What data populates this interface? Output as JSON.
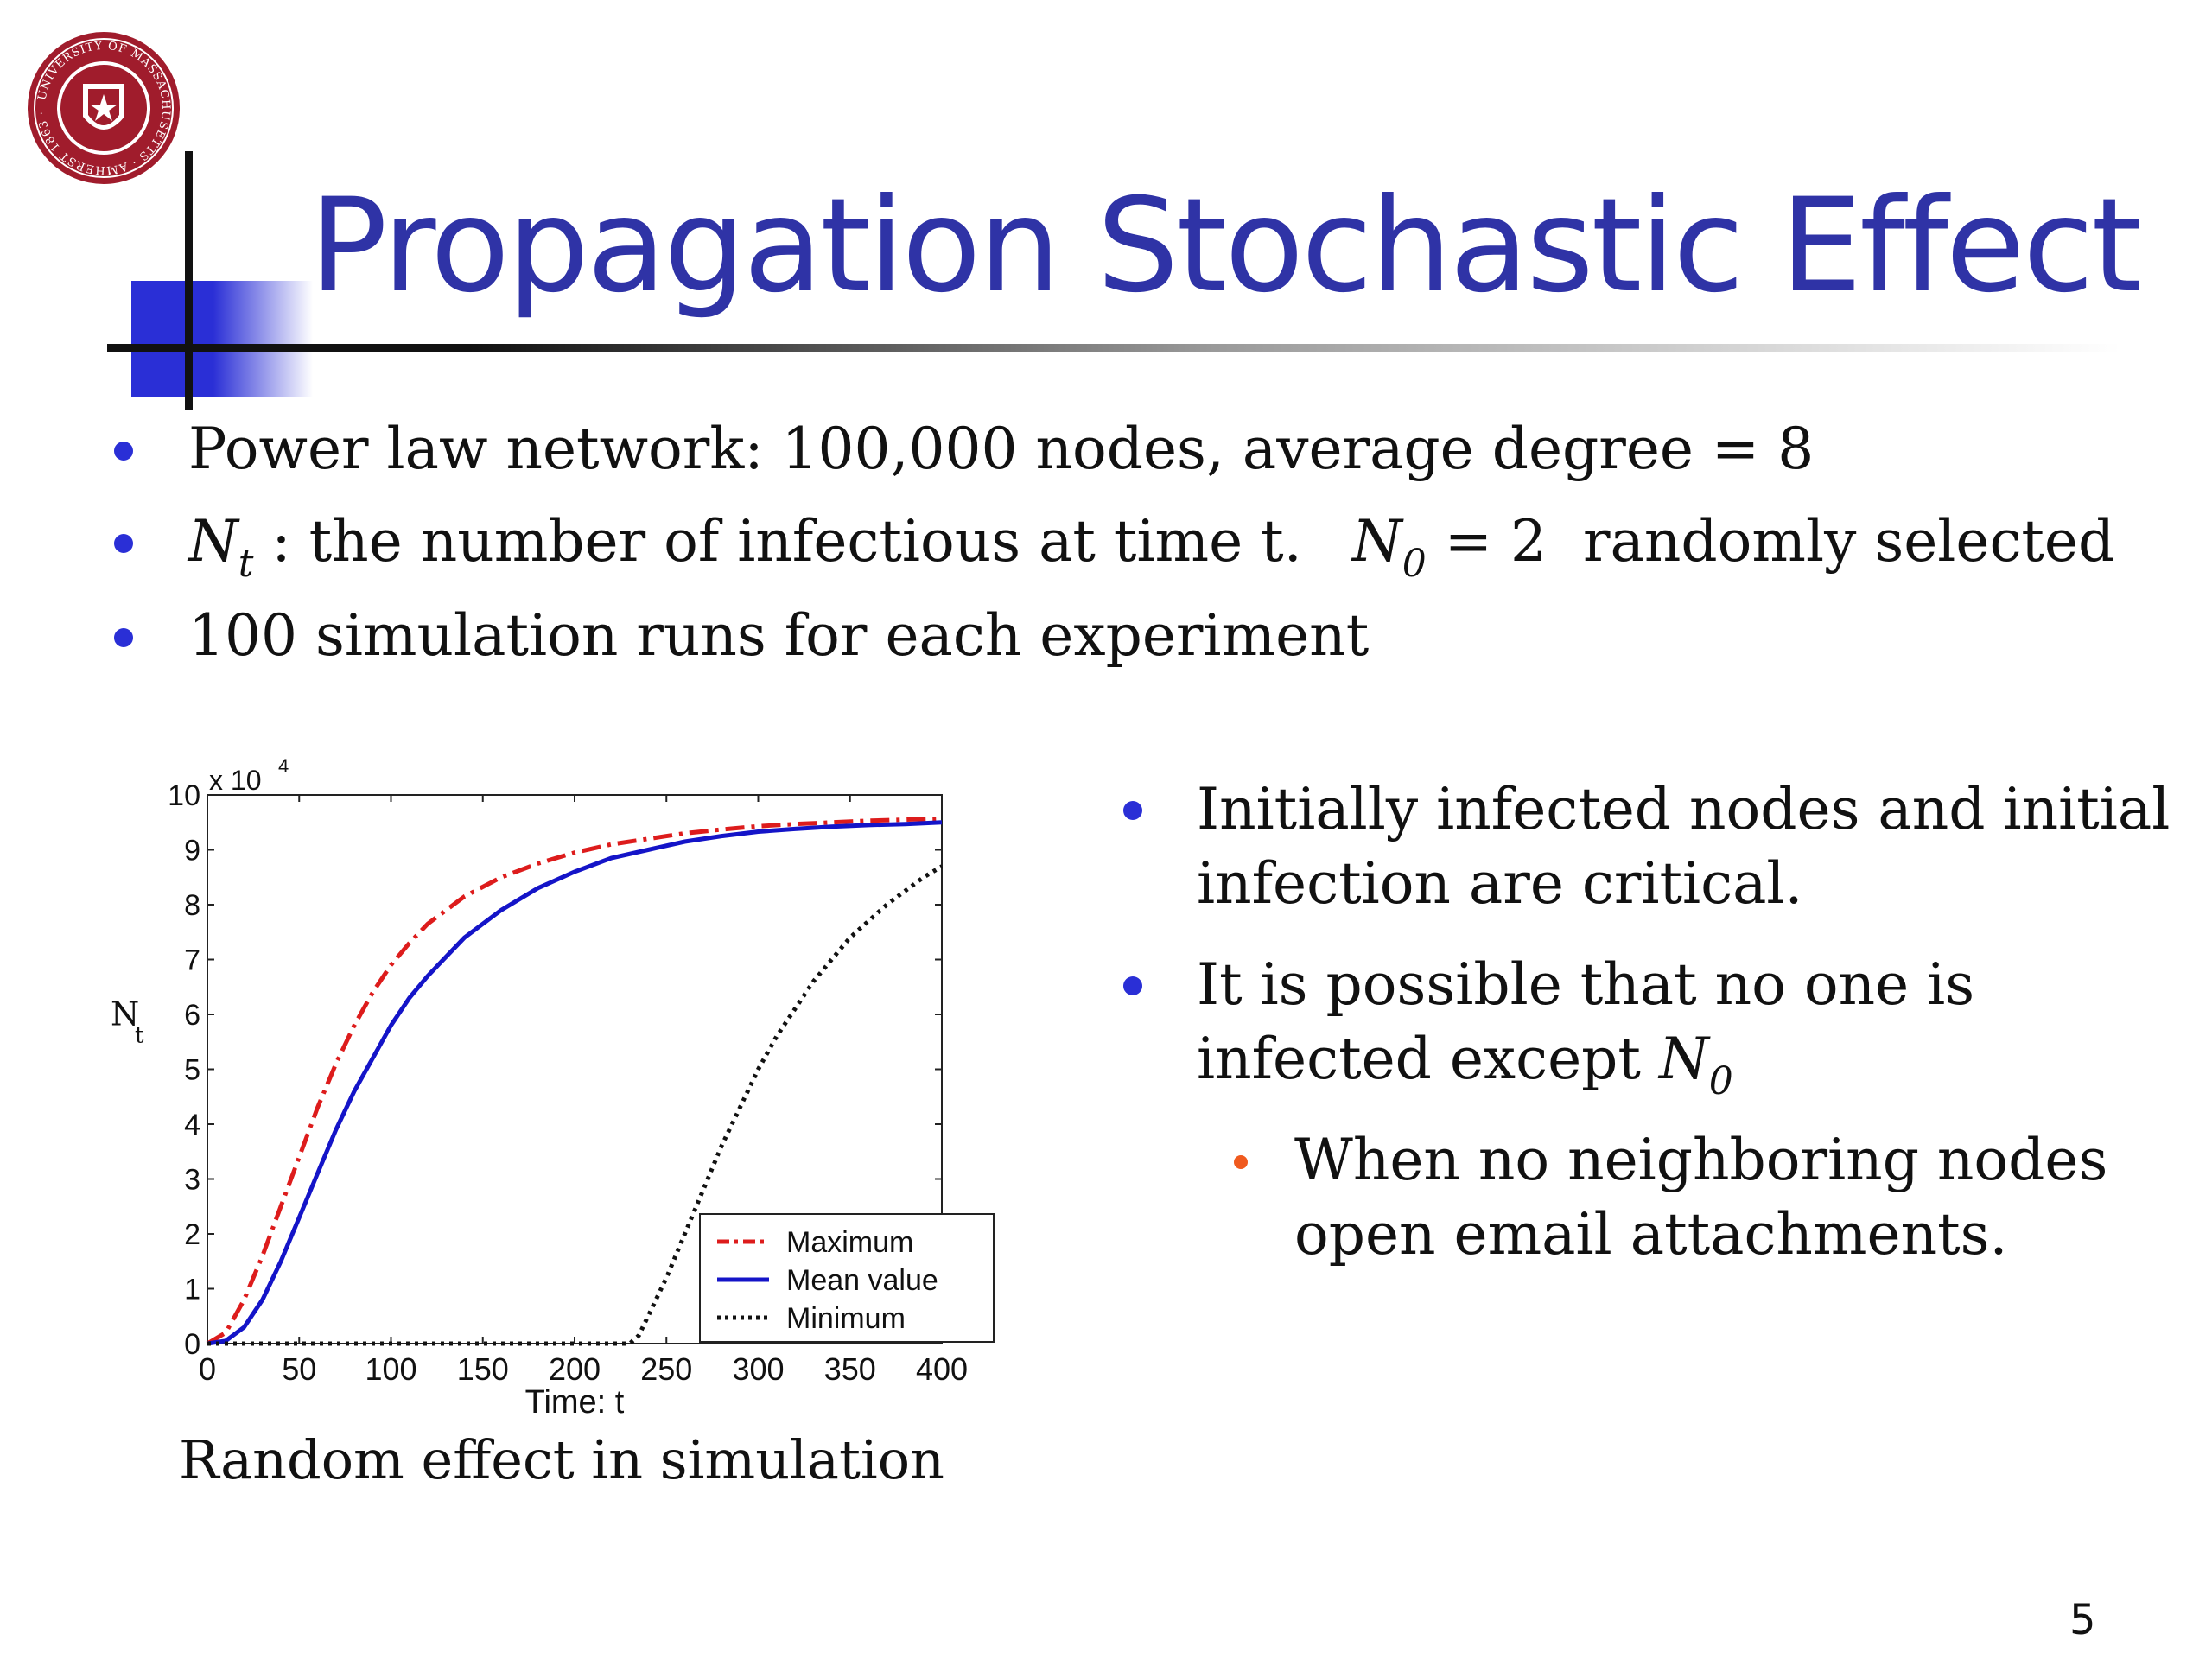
{
  "slide": {
    "title": "Propagation Stochastic Effect",
    "page_number": "5",
    "logo": {
      "icon": "umass-amherst-seal-icon",
      "text": "UNIVERSITY OF MASSACHUSETTS AMHERST 1863",
      "color": "#a01c2c"
    },
    "accent_color": "#2a2fd6",
    "title_color": "#2f33a6"
  },
  "top_bullets": {
    "b1": "Power law network:  100,000 nodes,  average degree = 8",
    "b2": {
      "var": "N",
      "var_sub": "t",
      "text": " : the number of infectious at time t.",
      "n0_var": "N",
      "n0_sub": "0",
      "n0_value": " = 2",
      "tail": "randomly selected"
    },
    "b3": "100 simulation runs for each experiment"
  },
  "right_bullets": {
    "b1": {
      "line1": "Initially infected nodes and initial",
      "line2": "infection are critical."
    },
    "b2": {
      "line1": "It is possible that no one is",
      "line2": "infected except ",
      "var": "N",
      "var_sub": "0"
    },
    "b3": {
      "line1": "When no neighboring nodes",
      "line2": "open email attachments."
    }
  },
  "caption": "Random effect in simulation",
  "chart_data": {
    "type": "line",
    "multiplier_label": "x 10",
    "multiplier_exp": "4",
    "ylabel": "N",
    "ylabel_sub": "t",
    "xlabel": "Time: t",
    "xlim": [
      0,
      400
    ],
    "ylim": [
      0,
      10
    ],
    "x_ticks": [
      "0",
      "50",
      "100",
      "150",
      "200",
      "250",
      "300",
      "350",
      "400"
    ],
    "y_ticks": [
      "0",
      "1",
      "2",
      "3",
      "4",
      "5",
      "6",
      "7",
      "8",
      "9",
      "10"
    ],
    "legend_position": "bottom-right",
    "series": [
      {
        "name": "Maximum",
        "color": "#dd1c1c",
        "style": "dashdot",
        "x": [
          0,
          10,
          20,
          30,
          40,
          50,
          60,
          70,
          80,
          90,
          100,
          110,
          120,
          140,
          160,
          180,
          200,
          220,
          240,
          260,
          280,
          300,
          320,
          340,
          360,
          380,
          400
        ],
        "y": [
          0.0,
          0.2,
          0.8,
          1.6,
          2.5,
          3.4,
          4.3,
          5.1,
          5.8,
          6.4,
          6.9,
          7.3,
          7.65,
          8.15,
          8.5,
          8.75,
          8.95,
          9.1,
          9.2,
          9.3,
          9.37,
          9.43,
          9.47,
          9.5,
          9.53,
          9.55,
          9.57
        ]
      },
      {
        "name": "Mean value",
        "color": "#1414c8",
        "style": "solid",
        "x": [
          0,
          10,
          20,
          30,
          40,
          50,
          60,
          70,
          80,
          90,
          100,
          110,
          120,
          140,
          160,
          180,
          200,
          220,
          240,
          260,
          280,
          300,
          320,
          340,
          360,
          380,
          400
        ],
        "y": [
          0.0,
          0.05,
          0.3,
          0.8,
          1.5,
          2.3,
          3.1,
          3.9,
          4.6,
          5.2,
          5.8,
          6.3,
          6.7,
          7.4,
          7.9,
          8.3,
          8.6,
          8.85,
          9.0,
          9.15,
          9.25,
          9.33,
          9.38,
          9.42,
          9.45,
          9.47,
          9.5
        ]
      },
      {
        "name": "Minimum",
        "color": "#111111",
        "style": "dotted",
        "x": [
          0,
          100,
          200,
          230,
          235,
          240,
          250,
          260,
          270,
          280,
          290,
          300,
          310,
          320,
          330,
          340,
          350,
          360,
          370,
          380,
          390,
          400
        ],
        "y": [
          0.0,
          0.0,
          0.0,
          0.0,
          0.15,
          0.5,
          1.2,
          2.0,
          2.8,
          3.6,
          4.3,
          5.0,
          5.6,
          6.1,
          6.6,
          7.0,
          7.4,
          7.7,
          8.0,
          8.25,
          8.5,
          8.7
        ]
      }
    ]
  }
}
